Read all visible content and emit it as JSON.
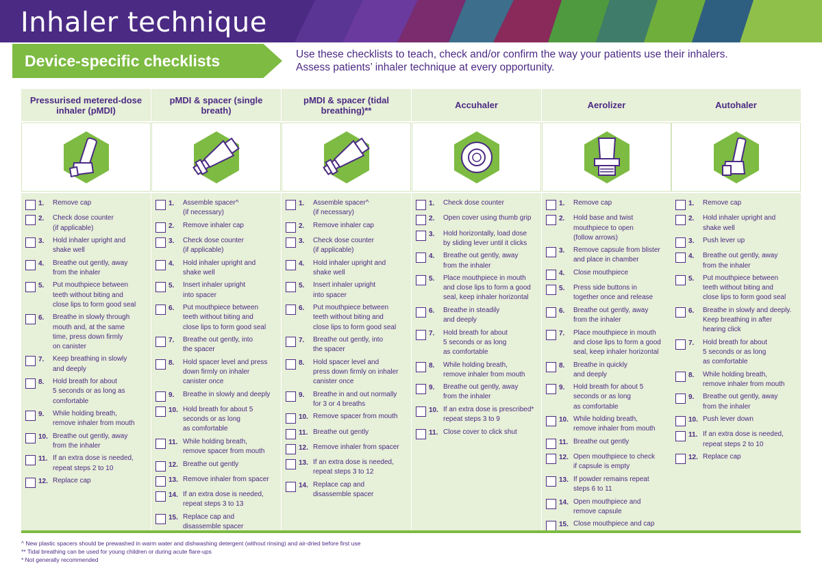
{
  "header": {
    "title": "Inhaler technique",
    "subtitle": "Device-specific checklists",
    "intro_line1": "Use these checklists to teach, check and/or confirm the way your patients use their inhalers.",
    "intro_line2": "Assess patients’ inhaler technique at every opportunity."
  },
  "colors": {
    "purple": "#4b2a84",
    "green": "#7dbb42",
    "light_green": "#e7f0d8"
  },
  "columns": [
    {
      "title": "Pressurised metered-dose inhaler (pMDI)",
      "icon": "pmdi-inhaler-icon",
      "steps": [
        {
          "num": "1.",
          "text": "Remove cap"
        },
        {
          "num": "2.",
          "text": "Check dose counter\n(if applicable)"
        },
        {
          "num": "3.",
          "text": "Hold inhaler upright and\nshake well"
        },
        {
          "num": "4.",
          "text": "Breathe out gently, away\nfrom the inhaler"
        },
        {
          "num": "5.",
          "text": "Put mouthpiece between\nteeth without biting and\nclose lips to form good seal"
        },
        {
          "num": "6.",
          "text": "Breathe in slowly through\nmouth and, at the same\ntime, press down firmly\non canister"
        },
        {
          "num": "7.",
          "text": "Keep breathing in slowly\nand deeply"
        },
        {
          "num": "8.",
          "text": "Hold breath for about\n5 seconds or as long as\ncomfortable"
        },
        {
          "num": "9.",
          "text": "While holding breath,\nremove inhaler from mouth"
        },
        {
          "num": "10.",
          "text": "Breathe out gently, away\nfrom the inhaler"
        },
        {
          "num": "11.",
          "text": "If an extra dose is needed,\nrepeat steps 2 to 10"
        },
        {
          "num": "12.",
          "text": "Replace cap"
        }
      ]
    },
    {
      "title": "pMDI & spacer (single breath)",
      "icon": "pmdi-spacer-icon",
      "steps": [
        {
          "num": "1.",
          "text": "Assemble spacer^\n(if necessary)"
        },
        {
          "num": "2.",
          "text": "Remove inhaler cap"
        },
        {
          "num": "3.",
          "text": "Check dose counter\n(if applicable)"
        },
        {
          "num": "4.",
          "text": "Hold inhaler upright and\nshake well"
        },
        {
          "num": "5.",
          "text": "Insert inhaler upright\ninto spacer"
        },
        {
          "num": "6.",
          "text": "Put mouthpiece between\nteeth without biting and\nclose lips to form good seal"
        },
        {
          "num": "7.",
          "text": "Breathe out gently, into\nthe spacer"
        },
        {
          "num": "8.",
          "text": "Hold spacer level and press\ndown firmly on inhaler\ncanister once"
        },
        {
          "num": "9.",
          "text": "Breathe in slowly and deeply"
        },
        {
          "num": "10.",
          "text": "Hold breath for about 5\nseconds or as long\nas comfortable"
        },
        {
          "num": "11.",
          "text": "While holding breath,\nremove spacer from mouth"
        },
        {
          "num": "12.",
          "text": "Breathe out gently"
        },
        {
          "num": "13.",
          "text": "Remove inhaler from spacer"
        },
        {
          "num": "14.",
          "text": "If an extra dose is needed,\nrepeat steps 3 to 13"
        },
        {
          "num": "15.",
          "text": "Replace cap and\ndisassemble spacer"
        }
      ]
    },
    {
      "title": "pMDI & spacer (tidal breathing)**",
      "icon": "pmdi-spacer-tidal-icon",
      "steps": [
        {
          "num": "1.",
          "text": "Assemble spacer^\n(if necessary)"
        },
        {
          "num": "2.",
          "text": "Remove inhaler cap"
        },
        {
          "num": "3.",
          "text": "Check dose counter\n(if applicable)"
        },
        {
          "num": "4.",
          "text": "Hold inhaler upright and\nshake well"
        },
        {
          "num": "5.",
          "text": "Insert inhaler upright\ninto spacer"
        },
        {
          "num": "6.",
          "text": "Put mouthpiece between\nteeth without biting and\nclose lips to form good seal"
        },
        {
          "num": "7.",
          "text": "Breathe out gently, into\nthe spacer"
        },
        {
          "num": "8.",
          "text": "Hold spacer level and\npress down firmly on inhaler\ncanister once"
        },
        {
          "num": "9.",
          "text": "Breathe in and out normally\nfor 3 or 4 breaths"
        },
        {
          "num": "10.",
          "text": "Remove spacer from mouth"
        },
        {
          "num": "11.",
          "text": "Breathe out gently"
        },
        {
          "num": "12.",
          "text": "Remove inhaler from spacer"
        },
        {
          "num": "13.",
          "text": "If an extra dose is needed,\nrepeat steps 3 to 12"
        },
        {
          "num": "14.",
          "text": "Replace cap and\ndisassemble spacer"
        }
      ]
    },
    {
      "title": "Accuhaler",
      "icon": "accuhaler-icon",
      "steps": [
        {
          "num": "1.",
          "text": "Check dose counter"
        },
        {
          "num": "2.",
          "text": "Open cover using thumb grip"
        },
        {
          "num": "3.",
          "text": "Hold horizontally, load dose\nby sliding lever until it clicks"
        },
        {
          "num": "4.",
          "text": "Breathe out gently, away\nfrom the inhaler"
        },
        {
          "num": "5.",
          "text": "Place mouthpiece in mouth\nand close lips to form a good\nseal, keep inhaler horizontal"
        },
        {
          "num": "6.",
          "text": "Breathe in steadily\nand deeply"
        },
        {
          "num": "7.",
          "text": "Hold breath for about\n5 seconds or as long\nas comfortable"
        },
        {
          "num": "8.",
          "text": "While holding breath,\nremove inhaler from mouth"
        },
        {
          "num": "9.",
          "text": "Breathe out gently, away\nfrom the inhaler"
        },
        {
          "num": "10.",
          "text": "If an extra dose is prescribed*\nrepeat steps 3 to 9"
        },
        {
          "num": "11.",
          "text": "Close cover to click shut"
        }
      ]
    },
    {
      "title": "Aerolizer",
      "icon": "aerolizer-icon",
      "steps": [
        {
          "num": "1.",
          "text": "Remove cap"
        },
        {
          "num": "2.",
          "text": "Hold base and twist\nmouthpiece to open\n(follow arrows)"
        },
        {
          "num": "3.",
          "text": "Remove capsule from blister\nand place in chamber"
        },
        {
          "num": "4.",
          "text": "Close mouthpiece"
        },
        {
          "num": "5.",
          "text": "Press side buttons in\ntogether once and release"
        },
        {
          "num": "6.",
          "text": "Breathe out gently, away\nfrom the inhaler"
        },
        {
          "num": "7.",
          "text": "Place mouthpiece in mouth\nand close lips to form a good\nseal, keep inhaler horizontal"
        },
        {
          "num": "8.",
          "text": "Breathe in quickly\nand deeply"
        },
        {
          "num": "9.",
          "text": "Hold breath for about 5\nseconds or as long\nas comfortable"
        },
        {
          "num": "10.",
          "text": "While holding breath,\nremove inhaler from mouth"
        },
        {
          "num": "11.",
          "text": "Breathe out gently"
        },
        {
          "num": "12.",
          "text": "Open mouthpiece to check\nif capsule is empty"
        },
        {
          "num": "13.",
          "text": "If powder remains repeat\nsteps 6 to 11"
        },
        {
          "num": "14.",
          "text": "Open mouthpiece and\nremove capsule"
        },
        {
          "num": "15.",
          "text": "Close mouthpiece and cap"
        }
      ]
    },
    {
      "title": "Autohaler",
      "icon": "autohaler-icon",
      "steps": [
        {
          "num": "1.",
          "text": "Remove cap"
        },
        {
          "num": "2.",
          "text": "Hold inhaler upright and\nshake well"
        },
        {
          "num": "3.",
          "text": "Push lever up"
        },
        {
          "num": "4.",
          "text": "Breathe out gently, away\nfrom the inhaler"
        },
        {
          "num": "5.",
          "text": "Put mouthpiece between\nteeth without biting and\nclose lips to form good seal"
        },
        {
          "num": "6.",
          "text": "Breathe in slowly and deeply.\nKeep breathing in after\nhearing click"
        },
        {
          "num": "7.",
          "text": "Hold breath for about\n5 seconds or as long\nas comfortable"
        },
        {
          "num": "8.",
          "text": "While holding breath,\nremove inhaler from mouth"
        },
        {
          "num": "9.",
          "text": "Breathe out gently, away\nfrom the inhaler"
        },
        {
          "num": "10.",
          "text": "Push lever down"
        },
        {
          "num": "11.",
          "text": "If an extra dose is needed,\nrepeat steps 2 to 10"
        },
        {
          "num": "12.",
          "text": "Replace cap"
        }
      ]
    }
  ],
  "footnotes": [
    "^   New plastic spacers should be prewashed in warm water and dishwashing detergent (without rinsing) and air-dried before first use",
    "**  Tidal breathing can be used for young children or during acute flare-ups",
    "*   Not generally recommended"
  ]
}
